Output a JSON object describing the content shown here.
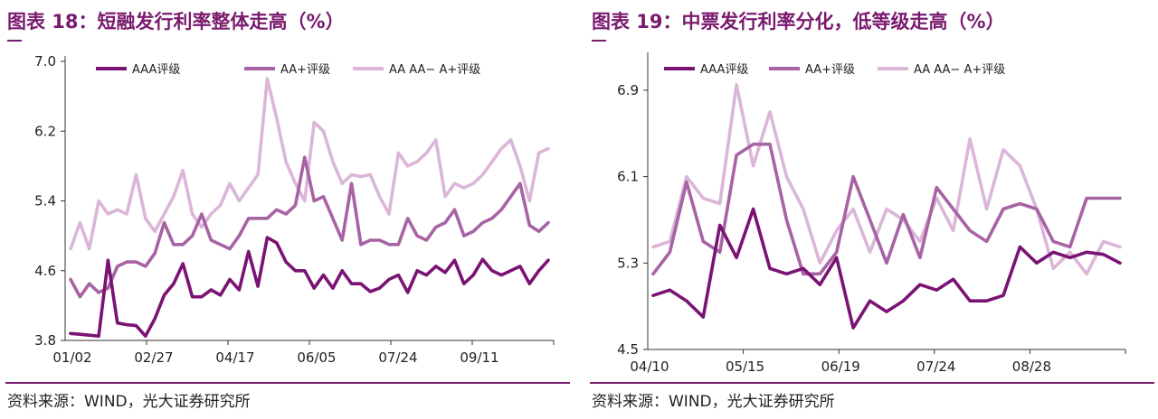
{
  "chart_data": [
    {
      "type": "line",
      "title": "图表 18：短融发行利率整体走高（%）",
      "source": "资料来源：WIND，光大证券研究所",
      "xticks": [
        "01/02",
        "02/27",
        "04/17",
        "06/05",
        "07/24",
        "09/11"
      ],
      "yticks": [
        "3.8",
        "4.6",
        "5.4",
        "6.2",
        "7.0"
      ],
      "ylim": [
        3.8,
        7.0
      ],
      "grid": false,
      "legend_position": "top",
      "n_points": 52,
      "series": [
        {
          "name": "AAA评级",
          "color": "#7a1373",
          "values": [
            3.88,
            3.87,
            3.86,
            3.85,
            4.72,
            4.0,
            3.98,
            3.97,
            3.85,
            4.05,
            4.32,
            4.45,
            4.68,
            4.3,
            4.3,
            4.38,
            4.32,
            4.5,
            4.38,
            4.82,
            4.42,
            4.98,
            4.92,
            4.7,
            4.6,
            4.6,
            4.4,
            4.55,
            4.4,
            4.6,
            4.45,
            4.45,
            4.36,
            4.4,
            4.5,
            4.55,
            4.35,
            4.6,
            4.55,
            4.65,
            4.58,
            4.72,
            4.45,
            4.55,
            4.73,
            4.6,
            4.55,
            4.6,
            4.65,
            4.45,
            4.6,
            4.72
          ]
        },
        {
          "name": "AA+评级",
          "color": "#a763a3",
          "values": [
            4.5,
            4.3,
            4.45,
            4.35,
            4.4,
            4.65,
            4.7,
            4.7,
            4.65,
            4.8,
            5.15,
            4.9,
            4.9,
            5.0,
            5.25,
            4.95,
            4.9,
            4.85,
            5.0,
            5.2,
            5.2,
            5.2,
            5.3,
            5.25,
            5.35,
            5.9,
            5.4,
            5.45,
            5.2,
            4.95,
            5.6,
            4.9,
            4.95,
            4.95,
            4.9,
            4.9,
            5.2,
            5.0,
            4.95,
            5.1,
            5.15,
            5.3,
            5.0,
            5.05,
            5.15,
            5.2,
            5.3,
            5.45,
            5.6,
            5.12,
            5.05,
            5.15
          ]
        },
        {
          "name": "AA AA− A+评级",
          "color": "#dbb6d8",
          "values": [
            4.85,
            5.15,
            4.85,
            5.4,
            5.25,
            5.3,
            5.25,
            5.7,
            5.2,
            5.05,
            5.25,
            5.45,
            5.75,
            5.25,
            5.1,
            5.25,
            5.35,
            5.6,
            5.4,
            5.55,
            5.7,
            6.8,
            6.35,
            5.85,
            5.6,
            5.4,
            6.3,
            6.2,
            5.85,
            5.6,
            5.7,
            5.68,
            5.7,
            5.45,
            5.25,
            5.95,
            5.8,
            5.85,
            5.95,
            6.1,
            5.45,
            5.6,
            5.55,
            5.6,
            5.7,
            5.85,
            6.0,
            6.1,
            5.8,
            5.4,
            5.95,
            6.0
          ]
        }
      ]
    },
    {
      "type": "line",
      "title": "图表 19：中票发行利率分化，低等级走高（%）",
      "source": "资料来源：WIND，光大证券研究所",
      "xticks": [
        "04/10",
        "05/15",
        "06/19",
        "07/24",
        "08/28"
      ],
      "yticks": [
        "4.5",
        "5.3",
        "6.1",
        "6.9"
      ],
      "ylim": [
        4.5,
        7.2
      ],
      "grid": false,
      "legend_position": "top",
      "n_points": 29,
      "series": [
        {
          "name": "AAA评级",
          "color": "#7a1373",
          "values": [
            5.0,
            5.05,
            4.95,
            4.8,
            5.65,
            5.35,
            5.8,
            5.25,
            5.2,
            5.25,
            5.1,
            5.35,
            4.7,
            4.95,
            4.85,
            4.95,
            5.1,
            5.05,
            5.15,
            4.95,
            4.95,
            5.0,
            5.45,
            5.3,
            5.4,
            5.35,
            5.4,
            5.38,
            5.3
          ]
        },
        {
          "name": "AA+评级",
          "color": "#a763a3",
          "values": [
            5.2,
            5.4,
            6.05,
            5.5,
            5.4,
            6.3,
            6.4,
            6.4,
            5.7,
            5.2,
            5.2,
            5.4,
            6.1,
            5.7,
            5.3,
            5.75,
            5.35,
            6.0,
            5.8,
            5.6,
            5.5,
            5.8,
            5.85,
            5.8,
            5.5,
            5.45,
            5.9,
            5.9,
            5.9
          ]
        },
        {
          "name": "AA AA− A+评级",
          "color": "#dbb6d8",
          "values": [
            5.45,
            5.5,
            6.1,
            5.9,
            5.85,
            6.95,
            6.2,
            6.7,
            6.1,
            5.8,
            5.3,
            5.6,
            5.8,
            5.4,
            5.8,
            5.7,
            5.5,
            5.9,
            5.6,
            6.45,
            5.8,
            6.35,
            6.2,
            5.8,
            5.25,
            5.4,
            5.2,
            5.5,
            5.45
          ]
        }
      ]
    }
  ]
}
